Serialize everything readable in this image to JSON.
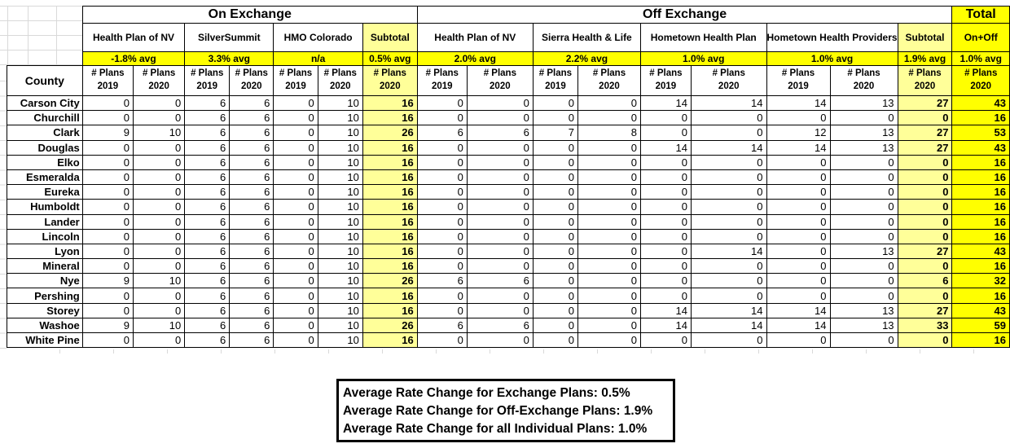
{
  "header": {
    "titles": {
      "on": "On Exchange",
      "off": "Off Exchange",
      "total": "Total"
    },
    "county_label": "County",
    "plans_label": "# Plans",
    "years": {
      "y2019": "2019",
      "y2020": "2020"
    },
    "on_carriers": [
      {
        "name": "Health Plan of NV",
        "avg": "-1.8% avg"
      },
      {
        "name": "SilverSummit",
        "avg": "3.3% avg"
      },
      {
        "name": "HMO Colorado",
        "avg": "n/a"
      }
    ],
    "on_subtotal": {
      "label": "Subtotal",
      "avg": "0.5% avg"
    },
    "off_carriers": [
      {
        "name": "Health Plan of NV",
        "avg": "2.0% avg"
      },
      {
        "name": "Sierra Health & Life",
        "avg": "2.2% avg"
      },
      {
        "name": "Hometown Health Plan",
        "avg": "1.0% avg"
      },
      {
        "name": "Hometown Health Providers",
        "avg": "1.0% avg"
      }
    ],
    "off_subtotal": {
      "label": "Subtotal",
      "avg": "1.9% avg"
    },
    "total_col": {
      "label": "On+Off",
      "avg": "1.0% avg"
    }
  },
  "colors": {
    "highlight_bright": "#FFFF00",
    "highlight_pale": "#FFFF99",
    "border": "#000000"
  },
  "rows": [
    {
      "county": "Carson City",
      "values": [
        0,
        0,
        6,
        6,
        0,
        10,
        16,
        0,
        0,
        0,
        0,
        14,
        14,
        14,
        13,
        27,
        43
      ]
    },
    {
      "county": "Churchill",
      "values": [
        0,
        0,
        6,
        6,
        0,
        10,
        16,
        0,
        0,
        0,
        0,
        0,
        0,
        0,
        0,
        0,
        16
      ]
    },
    {
      "county": "Clark",
      "values": [
        9,
        10,
        6,
        6,
        0,
        10,
        26,
        6,
        6,
        7,
        8,
        0,
        0,
        12,
        13,
        27,
        53
      ]
    },
    {
      "county": "Douglas",
      "values": [
        0,
        0,
        6,
        6,
        0,
        10,
        16,
        0,
        0,
        0,
        0,
        14,
        14,
        14,
        13,
        27,
        43
      ]
    },
    {
      "county": "Elko",
      "values": [
        0,
        0,
        6,
        6,
        0,
        10,
        16,
        0,
        0,
        0,
        0,
        0,
        0,
        0,
        0,
        0,
        16
      ]
    },
    {
      "county": "Esmeralda",
      "values": [
        0,
        0,
        6,
        6,
        0,
        10,
        16,
        0,
        0,
        0,
        0,
        0,
        0,
        0,
        0,
        0,
        16
      ]
    },
    {
      "county": "Eureka",
      "values": [
        0,
        0,
        6,
        6,
        0,
        10,
        16,
        0,
        0,
        0,
        0,
        0,
        0,
        0,
        0,
        0,
        16
      ]
    },
    {
      "county": "Humboldt",
      "values": [
        0,
        0,
        6,
        6,
        0,
        10,
        16,
        0,
        0,
        0,
        0,
        0,
        0,
        0,
        0,
        0,
        16
      ]
    },
    {
      "county": "Lander",
      "values": [
        0,
        0,
        6,
        6,
        0,
        10,
        16,
        0,
        0,
        0,
        0,
        0,
        0,
        0,
        0,
        0,
        16
      ]
    },
    {
      "county": "Lincoln",
      "values": [
        0,
        0,
        6,
        6,
        0,
        10,
        16,
        0,
        0,
        0,
        0,
        0,
        0,
        0,
        0,
        0,
        16
      ]
    },
    {
      "county": "Lyon",
      "values": [
        0,
        0,
        6,
        6,
        0,
        10,
        16,
        0,
        0,
        0,
        0,
        0,
        14,
        0,
        13,
        27,
        43
      ]
    },
    {
      "county": "Mineral",
      "values": [
        0,
        0,
        6,
        6,
        0,
        10,
        16,
        0,
        0,
        0,
        0,
        0,
        0,
        0,
        0,
        0,
        16
      ]
    },
    {
      "county": "Nye",
      "values": [
        9,
        10,
        6,
        6,
        0,
        10,
        26,
        6,
        6,
        0,
        0,
        0,
        0,
        0,
        0,
        6,
        32
      ]
    },
    {
      "county": "Pershing",
      "values": [
        0,
        0,
        6,
        6,
        0,
        10,
        16,
        0,
        0,
        0,
        0,
        0,
        0,
        0,
        0,
        0,
        16
      ]
    },
    {
      "county": "Storey",
      "values": [
        0,
        0,
        6,
        6,
        0,
        10,
        16,
        0,
        0,
        0,
        0,
        14,
        14,
        14,
        13,
        27,
        43
      ]
    },
    {
      "county": "Washoe",
      "values": [
        9,
        10,
        6,
        6,
        0,
        10,
        26,
        6,
        6,
        0,
        0,
        14,
        14,
        14,
        13,
        33,
        59
      ]
    },
    {
      "county": "White Pine",
      "values": [
        0,
        0,
        6,
        6,
        0,
        10,
        16,
        0,
        0,
        0,
        0,
        0,
        0,
        0,
        0,
        0,
        16
      ]
    }
  ],
  "summary": {
    "lines": [
      "Average Rate Change for Exchange Plans: 0.5%",
      "Average Rate Change for Off-Exchange Plans: 1.9%",
      "Average Rate Change for all Individual Plans: 1.0%"
    ]
  }
}
